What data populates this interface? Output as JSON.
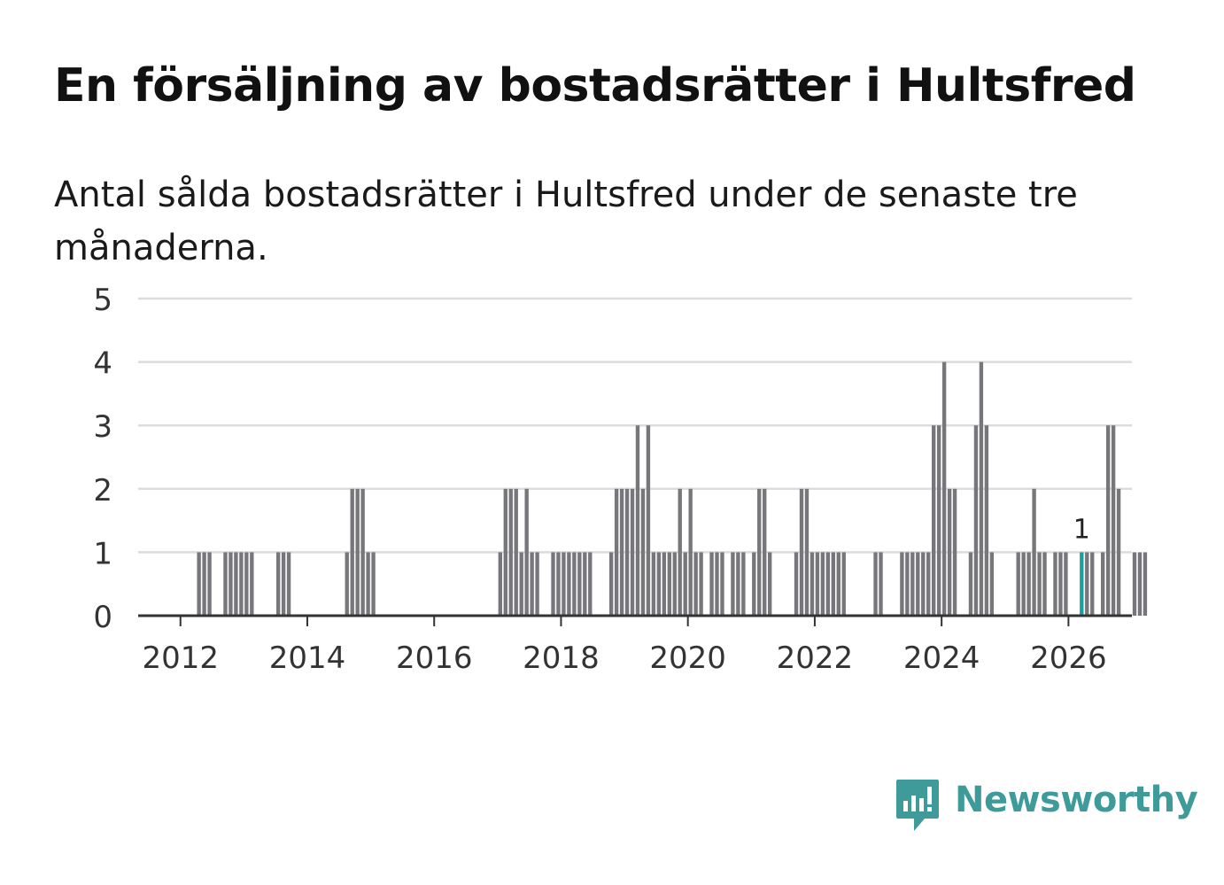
{
  "header": {
    "title": "En försäljning av bostadsrätter i Hultsfred",
    "subtitle": "Antal sålda bostadsrätter i Hultsfred under de senaste tre månaderna."
  },
  "brand": {
    "name": "Newsworthy",
    "color": "#3f9a9a"
  },
  "colors": {
    "bar": "#77767b",
    "highlight": "#1aa0a0",
    "grid": "#dcdcdc",
    "axis": "#333333",
    "text": "#333333"
  },
  "chart_data": {
    "type": "bar",
    "title": "En försäljning av bostadsrätter i Hultsfred",
    "subtitle": "Antal sålda bostadsrätter i Hultsfred under de senaste tre månaderna.",
    "xlabel": "",
    "ylabel": "",
    "ylim": [
      0,
      5
    ],
    "yticks": [
      "0",
      "1",
      "2",
      "3",
      "4",
      "5"
    ],
    "xticks": [
      "2012",
      "2014",
      "2016",
      "2018",
      "2020",
      "2022",
      "2024",
      "2026"
    ],
    "grid": true,
    "x_domain": [
      "2011-05",
      "2026-12"
    ],
    "start_month": "2012-04",
    "values": [
      1,
      1,
      1,
      0,
      0,
      1,
      1,
      1,
      1,
      1,
      1,
      0,
      0,
      0,
      0,
      1,
      1,
      1,
      0,
      0,
      0,
      0,
      0,
      0,
      0,
      0,
      0,
      0,
      1,
      2,
      2,
      2,
      1,
      1,
      0,
      0,
      0,
      0,
      0,
      0,
      0,
      0,
      0,
      0,
      0,
      0,
      0,
      0,
      0,
      0,
      0,
      0,
      0,
      0,
      0,
      0,
      0,
      1,
      2,
      2,
      2,
      1,
      2,
      1,
      1,
      0,
      0,
      1,
      1,
      1,
      1,
      1,
      1,
      1,
      1,
      0,
      0,
      0,
      1,
      2,
      2,
      2,
      2,
      3,
      2,
      3,
      1,
      1,
      1,
      1,
      1,
      2,
      1,
      2,
      1,
      1,
      0,
      1,
      1,
      1,
      0,
      1,
      1,
      1,
      0,
      1,
      2,
      2,
      1,
      0,
      0,
      0,
      0,
      1,
      2,
      2,
      1,
      1,
      1,
      1,
      1,
      1,
      1,
      0,
      0,
      0,
      0,
      0,
      1,
      1,
      0,
      0,
      0,
      1,
      1,
      1,
      1,
      1,
      1,
      3,
      3,
      4,
      2,
      2,
      0,
      0,
      1,
      3,
      4,
      3,
      1,
      0,
      0,
      0,
      0,
      1,
      1,
      1,
      2,
      1,
      1,
      0,
      1,
      1,
      1,
      0,
      0,
      1,
      1,
      1,
      0,
      1,
      3,
      3,
      2,
      0,
      0,
      1,
      1,
      1
    ],
    "highlight": {
      "month": "2026-03",
      "value": 1,
      "label": "1"
    }
  }
}
